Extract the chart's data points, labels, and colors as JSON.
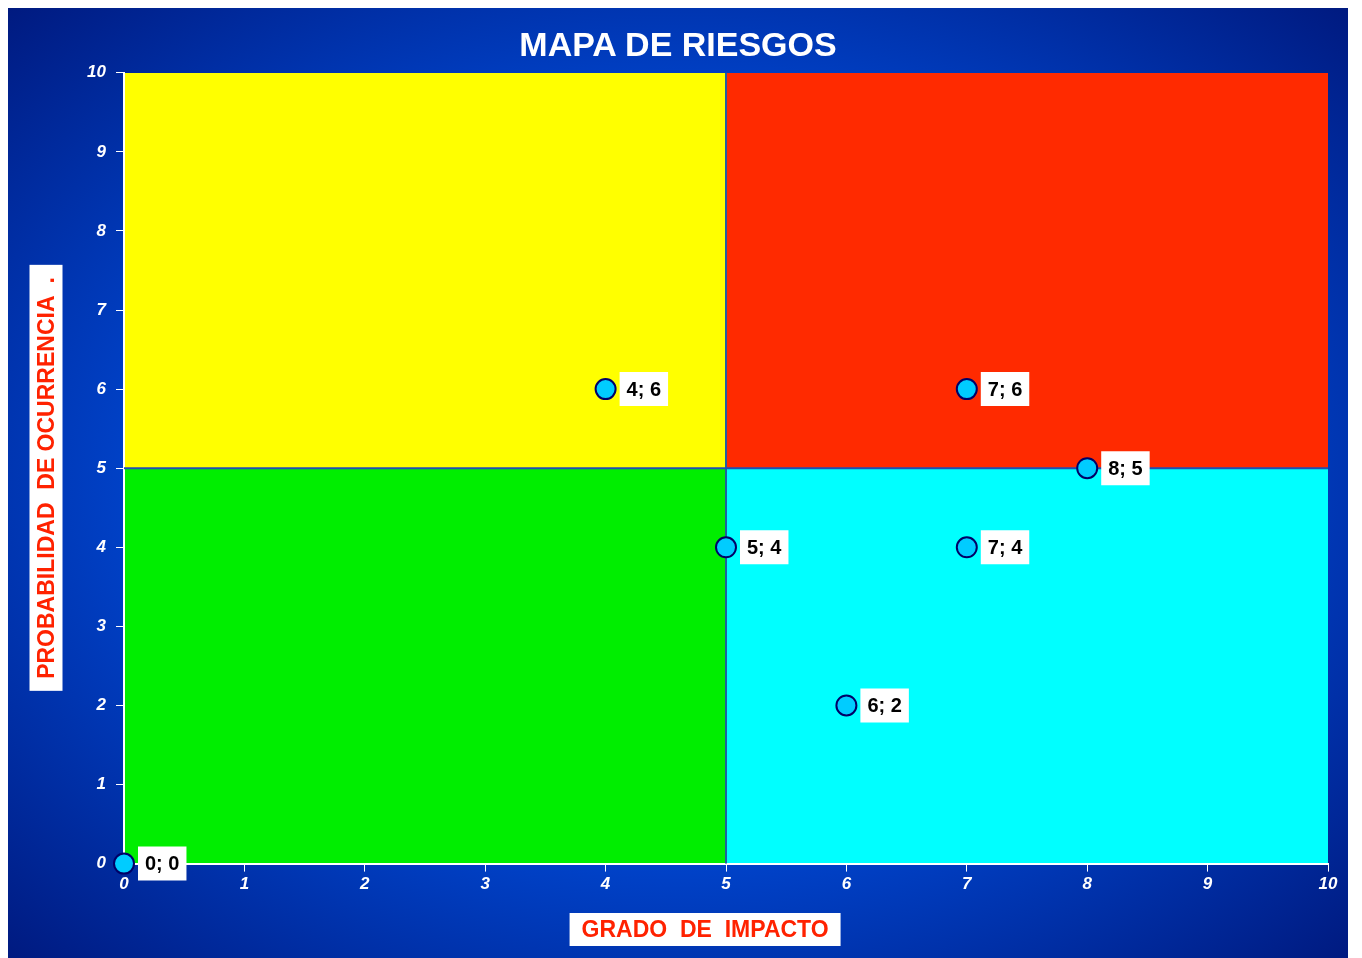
{
  "chart_data": {
    "type": "scatter",
    "title": "MAPA DE RIESGOS",
    "xlabel": "GRADO  DE  IMPACTO",
    "ylabel": "PROBABILIDAD  DE OCURRENCIA  .",
    "x": [
      0,
      4,
      7,
      8,
      5,
      7,
      6
    ],
    "series": [
      {
        "color": "#00ccff",
        "values": [
          0,
          6,
          6,
          5,
          4,
          4,
          2
        ],
        "value_labels": [
          "0; 0",
          "4; 6",
          "7; 6",
          "8; 5",
          "5; 4",
          "7; 4",
          "6; 2"
        ]
      }
    ],
    "xlim": [
      0,
      10
    ],
    "ylim": [
      0,
      10
    ],
    "xticks": [
      0,
      1,
      2,
      3,
      4,
      5,
      6,
      7,
      8,
      9,
      10
    ],
    "yticks": [
      0,
      1,
      2,
      3,
      4,
      5,
      6,
      7,
      8,
      9,
      10
    ],
    "ref_lines": [
      {
        "axis": "x",
        "value": 5,
        "color": "#1f5fa0"
      },
      {
        "axis": "y",
        "value": 5,
        "color": "#1f4fb0"
      }
    ],
    "grid": false,
    "legend": false,
    "marker": "circle"
  }
}
